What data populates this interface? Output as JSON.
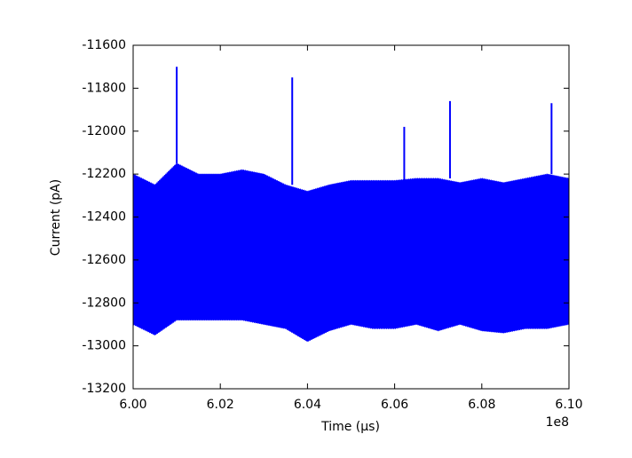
{
  "chart_data": {
    "type": "band",
    "xlabel": "Time (μs)",
    "ylabel": "Current (pA)",
    "x_offset_label": "1e8",
    "color": "#0000ff",
    "x": [
      6.0,
      6.005,
      6.01,
      6.015,
      6.02,
      6.025,
      6.03,
      6.035,
      6.04,
      6.045,
      6.05,
      6.055,
      6.06,
      6.065,
      6.07,
      6.075,
      6.08,
      6.085,
      6.09,
      6.095,
      6.1
    ],
    "upper": [
      -12200,
      -12250,
      -12150,
      -12200,
      -12200,
      -12180,
      -12200,
      -12250,
      -12280,
      -12250,
      -12230,
      -12230,
      -12230,
      -12220,
      -12220,
      -12240,
      -12220,
      -12240,
      -12220,
      -12200,
      -12220
    ],
    "lower": [
      -12900,
      -12950,
      -12880,
      -12880,
      -12880,
      -12880,
      -12900,
      -12920,
      -12980,
      -12930,
      -12900,
      -12920,
      -12920,
      -12900,
      -12930,
      -12900,
      -12930,
      -12940,
      -12920,
      -12920,
      -12900
    ],
    "spikes": {
      "x": [
        6.01,
        6.0365,
        6.0622,
        6.0727,
        6.096
      ],
      "values": [
        -11700,
        -11750,
        -11980,
        -11860,
        -11870
      ]
    },
    "xlim": [
      6.0,
      6.1
    ],
    "xticks": [
      {
        "value": 6.0,
        "label": "6.00"
      },
      {
        "value": 6.02,
        "label": "6.02"
      },
      {
        "value": 6.04,
        "label": "6.04"
      },
      {
        "value": 6.06,
        "label": "6.06"
      },
      {
        "value": 6.08,
        "label": "6.08"
      },
      {
        "value": 6.1,
        "label": "6.10"
      }
    ],
    "ylim": [
      -13200,
      -11600
    ],
    "yticks": [
      -13200,
      -13000,
      -12800,
      -12600,
      -12400,
      -12200,
      -12000,
      -11800,
      -11600
    ]
  }
}
